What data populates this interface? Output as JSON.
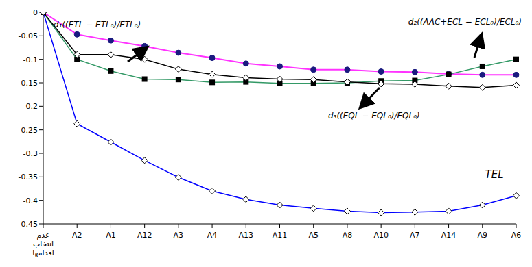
{
  "chart_data": {
    "type": "line",
    "categories": [
      "عدم انتخاب اقدامها",
      "A2",
      "A1",
      "A12",
      "A3",
      "A4",
      "A13",
      "A11",
      "A5",
      "A8",
      "A10",
      "A7",
      "A14",
      "A9",
      "A6"
    ],
    "ylim": [
      -0.45,
      0
    ],
    "yticks": [
      0,
      -0.05,
      -0.1,
      -0.15,
      -0.2,
      -0.25,
      -0.3,
      -0.35,
      -0.4,
      -0.45
    ],
    "grid": false,
    "series": [
      {
        "name": "d₁((ETL − ETL₀)/ETL₀)",
        "color": "#ff33ff",
        "marker": "circle",
        "values": [
          0,
          -0.047,
          -0.06,
          -0.072,
          -0.086,
          -0.097,
          -0.109,
          -0.115,
          -0.122,
          -0.122,
          -0.126,
          -0.127,
          -0.131,
          -0.133,
          -0.133
        ]
      },
      {
        "name": "d₂((AAC+ECL − ECL₀)/ECL₀)",
        "color": "#339966",
        "marker": "square",
        "values": [
          0,
          -0.1,
          -0.125,
          -0.142,
          -0.143,
          -0.149,
          -0.148,
          -0.151,
          -0.151,
          -0.15,
          -0.146,
          -0.145,
          -0.132,
          -0.115,
          -0.1
        ]
      },
      {
        "name": "d₃((EQL − EQL₀)/EQL₀)",
        "color": "#000000",
        "marker": "diamond",
        "values": [
          0,
          -0.09,
          -0.09,
          -0.1,
          -0.121,
          -0.132,
          -0.139,
          -0.142,
          -0.143,
          -0.148,
          -0.152,
          -0.153,
          -0.157,
          -0.16,
          -0.155
        ]
      },
      {
        "name": "TEL",
        "color": "#0000ff",
        "marker": "diamond",
        "values": [
          0,
          -0.237,
          -0.276,
          -0.315,
          -0.351,
          -0.38,
          -0.398,
          -0.41,
          -0.417,
          -0.423,
          -0.426,
          -0.425,
          -0.423,
          -0.41,
          -0.39
        ]
      }
    ]
  }
}
